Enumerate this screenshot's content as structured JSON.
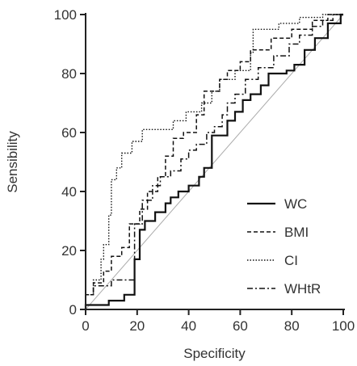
{
  "chart_data": {
    "type": "line",
    "xlabel": "Specificity",
    "ylabel": "Sensibility",
    "xlim": [
      0,
      100
    ],
    "ylim": [
      0,
      100
    ],
    "x_ticks": [
      "0",
      "20",
      "40",
      "60",
      "80",
      "100"
    ],
    "y_ticks": [
      "0",
      "20",
      "40",
      "60",
      "80",
      "100"
    ],
    "legend_position": "bottom-right",
    "grid": false,
    "reference_line": {
      "from": [
        0,
        0
      ],
      "to": [
        100,
        100
      ],
      "color": "#aaaaaa"
    },
    "series": [
      {
        "name": "WC",
        "style": "solid",
        "color": "#111111",
        "points": [
          [
            0,
            0
          ],
          [
            0,
            1.5
          ],
          [
            9,
            1.5
          ],
          [
            9,
            3
          ],
          [
            15,
            3
          ],
          [
            15,
            5
          ],
          [
            19,
            5
          ],
          [
            19,
            17
          ],
          [
            21,
            17
          ],
          [
            21,
            27
          ],
          [
            23,
            27
          ],
          [
            23,
            30
          ],
          [
            27,
            30
          ],
          [
            27,
            33
          ],
          [
            31,
            33
          ],
          [
            31,
            36
          ],
          [
            33,
            36
          ],
          [
            33,
            38
          ],
          [
            36,
            38
          ],
          [
            36,
            40
          ],
          [
            40,
            40
          ],
          [
            40,
            42
          ],
          [
            44,
            42
          ],
          [
            44,
            45
          ],
          [
            46,
            45
          ],
          [
            46,
            48
          ],
          [
            49,
            48
          ],
          [
            49,
            59
          ],
          [
            55,
            59
          ],
          [
            55,
            64
          ],
          [
            58,
            64
          ],
          [
            58,
            67
          ],
          [
            61,
            67
          ],
          [
            61,
            71
          ],
          [
            64,
            71
          ],
          [
            64,
            73
          ],
          [
            68,
            73
          ],
          [
            68,
            76
          ],
          [
            71,
            76
          ],
          [
            71,
            80
          ],
          [
            78,
            80
          ],
          [
            78,
            81
          ],
          [
            81,
            81
          ],
          [
            81,
            83
          ],
          [
            85,
            83
          ],
          [
            85,
            88
          ],
          [
            89,
            88
          ],
          [
            89,
            92
          ],
          [
            94,
            92
          ],
          [
            94,
            97
          ],
          [
            99,
            97
          ],
          [
            99,
            100
          ],
          [
            100,
            100
          ]
        ]
      },
      {
        "name": "BMI",
        "style": "dashed",
        "color": "#111111",
        "points": [
          [
            0,
            0
          ],
          [
            0,
            5
          ],
          [
            3,
            5
          ],
          [
            3,
            9
          ],
          [
            7,
            9
          ],
          [
            7,
            13
          ],
          [
            10,
            13
          ],
          [
            10,
            18
          ],
          [
            14,
            18
          ],
          [
            14,
            21
          ],
          [
            17,
            21
          ],
          [
            17,
            29
          ],
          [
            21,
            29
          ],
          [
            21,
            34
          ],
          [
            24,
            34
          ],
          [
            24,
            40
          ],
          [
            28,
            40
          ],
          [
            28,
            45
          ],
          [
            31,
            45
          ],
          [
            31,
            52
          ],
          [
            34,
            52
          ],
          [
            34,
            58
          ],
          [
            38,
            58
          ],
          [
            38,
            60
          ],
          [
            43,
            60
          ],
          [
            43,
            66
          ],
          [
            46,
            66
          ],
          [
            46,
            74
          ],
          [
            52,
            74
          ],
          [
            52,
            78
          ],
          [
            55,
            78
          ],
          [
            55,
            81
          ],
          [
            60,
            81
          ],
          [
            60,
            84
          ],
          [
            64,
            84
          ],
          [
            64,
            88
          ],
          [
            72,
            88
          ],
          [
            72,
            92
          ],
          [
            80,
            92
          ],
          [
            80,
            95
          ],
          [
            88,
            95
          ],
          [
            88,
            98
          ],
          [
            94,
            98
          ],
          [
            94,
            100
          ],
          [
            100,
            100
          ]
        ]
      },
      {
        "name": "CI",
        "style": "dotted",
        "color": "#111111",
        "points": [
          [
            0,
            0
          ],
          [
            0,
            5
          ],
          [
            3,
            5
          ],
          [
            3,
            10
          ],
          [
            6,
            10
          ],
          [
            6,
            17
          ],
          [
            7,
            17
          ],
          [
            7,
            22
          ],
          [
            9,
            22
          ],
          [
            9,
            32
          ],
          [
            10,
            32
          ],
          [
            10,
            44
          ],
          [
            12,
            44
          ],
          [
            12,
            48
          ],
          [
            14,
            48
          ],
          [
            14,
            53
          ],
          [
            18,
            53
          ],
          [
            18,
            57
          ],
          [
            22,
            57
          ],
          [
            22,
            61
          ],
          [
            34,
            61
          ],
          [
            34,
            64
          ],
          [
            39,
            64
          ],
          [
            39,
            67
          ],
          [
            45,
            67
          ],
          [
            45,
            70
          ],
          [
            49,
            70
          ],
          [
            49,
            74
          ],
          [
            52,
            74
          ],
          [
            52,
            78
          ],
          [
            58,
            78
          ],
          [
            58,
            81
          ],
          [
            64,
            81
          ],
          [
            64,
            87
          ],
          [
            65,
            87
          ],
          [
            65,
            95
          ],
          [
            75,
            95
          ],
          [
            75,
            97
          ],
          [
            83,
            97
          ],
          [
            83,
            99
          ],
          [
            92,
            99
          ],
          [
            92,
            100
          ],
          [
            100,
            100
          ]
        ]
      },
      {
        "name": "WHtR",
        "style": "dashdot",
        "color": "#111111",
        "points": [
          [
            0,
            0
          ],
          [
            0,
            5
          ],
          [
            3,
            5
          ],
          [
            3,
            8
          ],
          [
            10,
            8
          ],
          [
            10,
            10
          ],
          [
            19,
            10
          ],
          [
            19,
            29
          ],
          [
            22,
            29
          ],
          [
            22,
            37
          ],
          [
            26,
            37
          ],
          [
            26,
            42
          ],
          [
            29,
            42
          ],
          [
            29,
            45
          ],
          [
            33,
            45
          ],
          [
            33,
            47
          ],
          [
            37,
            47
          ],
          [
            37,
            51
          ],
          [
            40,
            51
          ],
          [
            40,
            54
          ],
          [
            43,
            54
          ],
          [
            43,
            56
          ],
          [
            47,
            56
          ],
          [
            47,
            60
          ],
          [
            50,
            60
          ],
          [
            50,
            62
          ],
          [
            53,
            62
          ],
          [
            53,
            66
          ],
          [
            55,
            66
          ],
          [
            55,
            70
          ],
          [
            58,
            70
          ],
          [
            58,
            73
          ],
          [
            62,
            73
          ],
          [
            62,
            78
          ],
          [
            67,
            78
          ],
          [
            67,
            82
          ],
          [
            73,
            82
          ],
          [
            73,
            86
          ],
          [
            79,
            86
          ],
          [
            79,
            90
          ],
          [
            83,
            90
          ],
          [
            83,
            93
          ],
          [
            88,
            93
          ],
          [
            88,
            96
          ],
          [
            92,
            96
          ],
          [
            92,
            98
          ],
          [
            96,
            98
          ],
          [
            96,
            100
          ],
          [
            100,
            100
          ]
        ]
      }
    ]
  }
}
